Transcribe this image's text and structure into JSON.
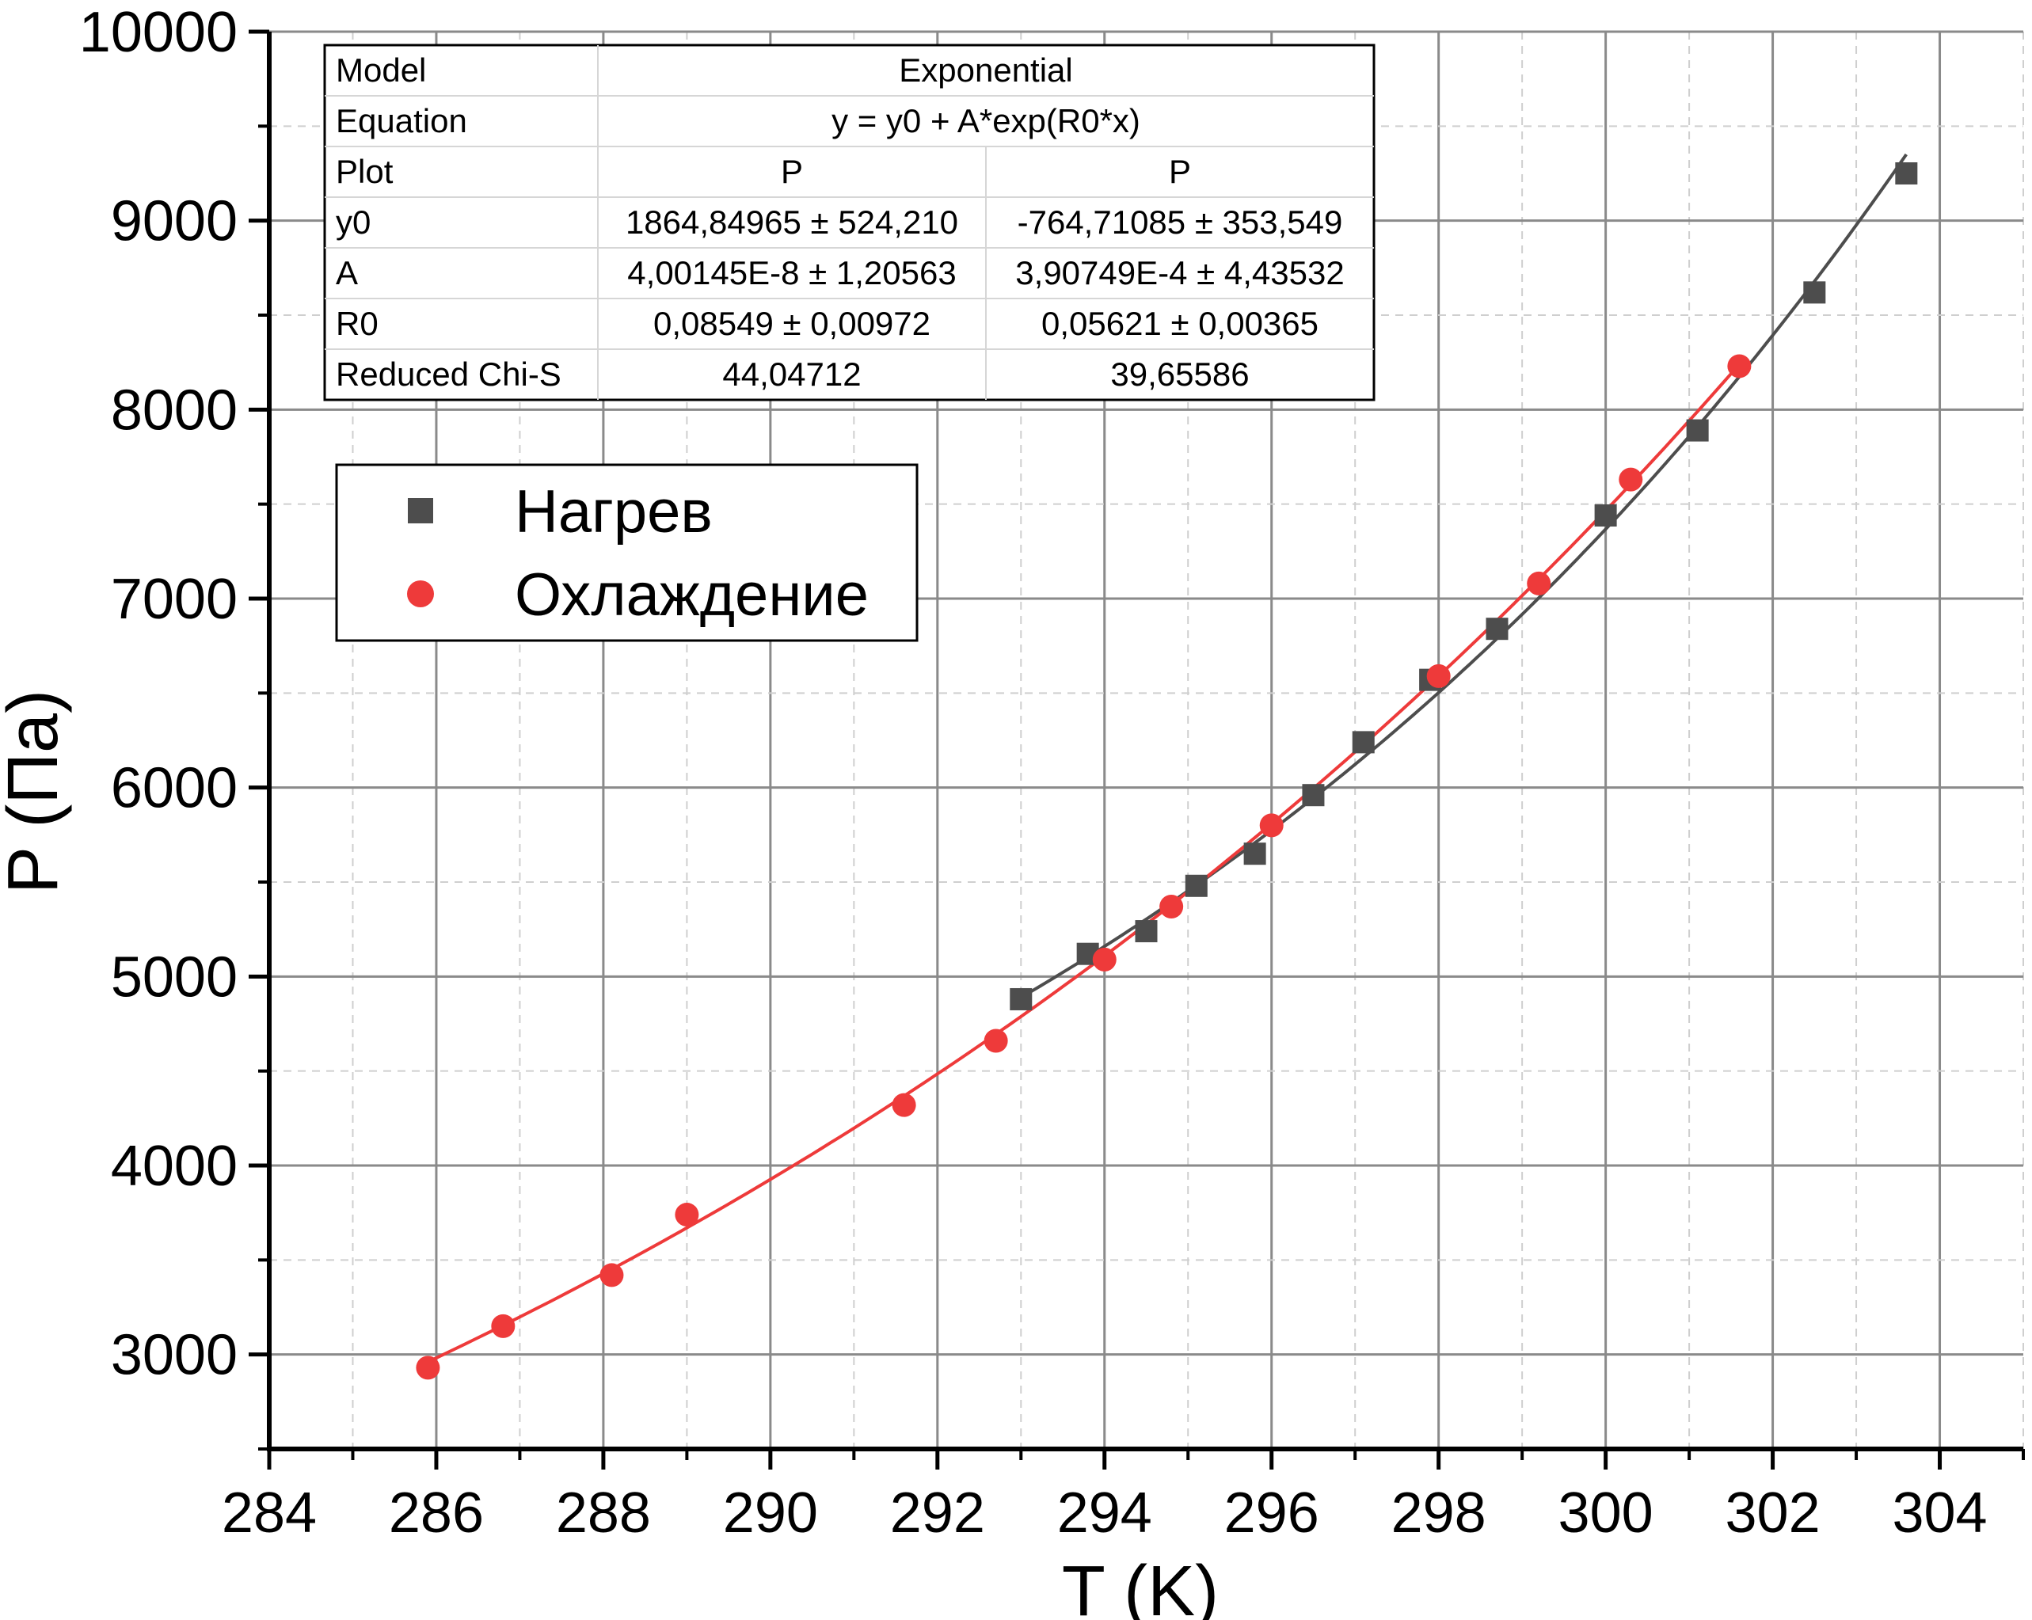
{
  "chart_data": {
    "type": "scatter",
    "xlabel": "T (K)",
    "ylabel": "P (Па)",
    "xlim": [
      284,
      305
    ],
    "ylim": [
      2500,
      10000
    ],
    "x_ticks": [
      "284",
      "286",
      "288",
      "290",
      "292",
      "294",
      "296",
      "298",
      "300",
      "302",
      "304"
    ],
    "y_ticks": [
      "3000",
      "4000",
      "5000",
      "6000",
      "7000",
      "8000",
      "9000",
      "10000"
    ],
    "grid": true,
    "legend_position": "top-left",
    "series": [
      {
        "name": "Нагрев",
        "marker": "square",
        "color": "#4d4d4d",
        "x": [
          293.0,
          293.8,
          294.5,
          295.1,
          295.8,
          296.5,
          297.1,
          297.9,
          298.7,
          300.0,
          301.1,
          302.5,
          303.6
        ],
        "y": [
          4880,
          5120,
          5240,
          5480,
          5650,
          5960,
          6240,
          6570,
          6840,
          7440,
          7890,
          8620,
          9250
        ],
        "fit": {
          "y0": 1864.84965,
          "A": 4.00145e-08,
          "R0": 0.08549,
          "x_range": [
            293.0,
            303.6
          ]
        }
      },
      {
        "name": "Охлаждение",
        "marker": "circle",
        "color": "#ee3a3a",
        "x": [
          285.9,
          286.8,
          288.1,
          289.0,
          291.6,
          292.7,
          294.0,
          294.8,
          296.0,
          298.0,
          299.2,
          300.3,
          301.6
        ],
        "y": [
          2930,
          3150,
          3420,
          3740,
          4320,
          4660,
          5090,
          5370,
          5800,
          6590,
          7080,
          7630,
          8230
        ],
        "fit": {
          "y0": -764.71085,
          "A": 0.000390749,
          "R0": 0.05621,
          "x_range": [
            285.9,
            301.6
          ]
        }
      }
    ],
    "fit_table": {
      "rows": [
        [
          "Model",
          "Exponential"
        ],
        [
          "Equation",
          "y = y0 + A*exp(R0*x)"
        ],
        [
          "Plot",
          "P",
          "P"
        ],
        [
          "y0",
          "1864,84965 ± 524,210",
          "-764,71085 ± 353,549"
        ],
        [
          "A",
          "4,00145E-8 ± 1,20563",
          "3,90749E-4 ± 4,43532"
        ],
        [
          "R0",
          "0,08549 ± 0,00972",
          "0,05621 ± 0,00365"
        ],
        [
          "Reduced Chi-S",
          "44,04712",
          "39,65586"
        ]
      ]
    }
  }
}
